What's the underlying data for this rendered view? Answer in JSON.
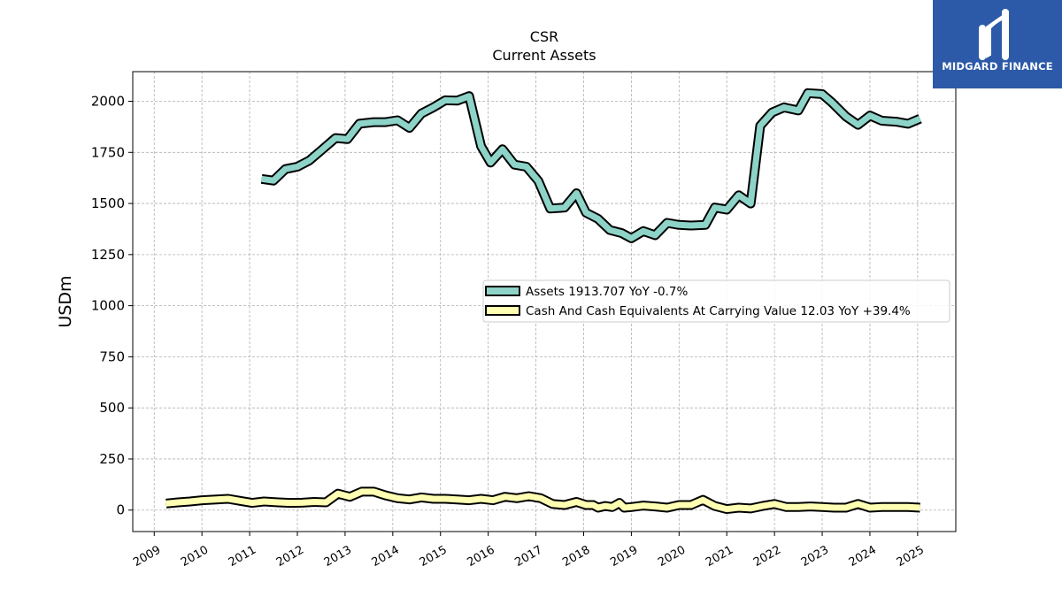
{
  "brand": {
    "name": "MIDGARD FINANCE",
    "bg_color": "#2c5aa8",
    "icon": "midgard-logo-icon"
  },
  "chart_data": {
    "type": "line",
    "title": "CSR",
    "subtitle": "Current  Assets",
    "xlabel": "",
    "ylabel": "USDm",
    "x_ticks": [
      "2009",
      "2010",
      "2011",
      "2012",
      "2013",
      "2014",
      "2015",
      "2016",
      "2017",
      "2018",
      "2019",
      "2020",
      "2021",
      "2022",
      "2023",
      "2024",
      "2025"
    ],
    "y_ticks": [
      0,
      250,
      500,
      750,
      1000,
      1250,
      1500,
      1750,
      2000
    ],
    "xlim": [
      2008.55,
      2025.8
    ],
    "ylim": [
      -105,
      2145
    ],
    "grid": true,
    "legend_position": "center-right",
    "series": [
      {
        "name": "Assets",
        "legend_label": "Assets  1913.707 YoY -0.7%",
        "color": "#8dd3c7",
        "points": [
          [
            2011.25,
            1620
          ],
          [
            2011.5,
            1612
          ],
          [
            2011.75,
            1668
          ],
          [
            2012.0,
            1680
          ],
          [
            2012.25,
            1710
          ],
          [
            2012.5,
            1760
          ],
          [
            2012.8,
            1820
          ],
          [
            2013.05,
            1815
          ],
          [
            2013.3,
            1890
          ],
          [
            2013.6,
            1898
          ],
          [
            2013.85,
            1898
          ],
          [
            2014.1,
            1907
          ],
          [
            2014.35,
            1870
          ],
          [
            2014.6,
            1940
          ],
          [
            2014.85,
            1970
          ],
          [
            2015.1,
            2005
          ],
          [
            2015.35,
            2003
          ],
          [
            2015.6,
            2025
          ],
          [
            2015.85,
            1780
          ],
          [
            2016.05,
            1700
          ],
          [
            2016.3,
            1765
          ],
          [
            2016.55,
            1690
          ],
          [
            2016.8,
            1680
          ],
          [
            2017.05,
            1610
          ],
          [
            2017.3,
            1475
          ],
          [
            2017.6,
            1480
          ],
          [
            2017.85,
            1550
          ],
          [
            2018.05,
            1455
          ],
          [
            2018.3,
            1425
          ],
          [
            2018.55,
            1370
          ],
          [
            2018.8,
            1355
          ],
          [
            2019.0,
            1330
          ],
          [
            2019.25,
            1365
          ],
          [
            2019.5,
            1345
          ],
          [
            2019.75,
            1405
          ],
          [
            2020.0,
            1395
          ],
          [
            2020.25,
            1392
          ],
          [
            2020.55,
            1395
          ],
          [
            2020.75,
            1480
          ],
          [
            2021.0,
            1470
          ],
          [
            2021.25,
            1540
          ],
          [
            2021.5,
            1500
          ],
          [
            2021.7,
            1880
          ],
          [
            2021.95,
            1945
          ],
          [
            2022.2,
            1970
          ],
          [
            2022.5,
            1955
          ],
          [
            2022.7,
            2040
          ],
          [
            2023.0,
            2035
          ],
          [
            2023.2,
            1995
          ],
          [
            2023.5,
            1925
          ],
          [
            2023.75,
            1885
          ],
          [
            2024.0,
            1930
          ],
          [
            2024.25,
            1905
          ],
          [
            2024.55,
            1900
          ],
          [
            2024.8,
            1890
          ],
          [
            2025.05,
            1915
          ]
        ]
      },
      {
        "name": "Cash And Cash Equivalents At Carrying Value",
        "legend_label": "Cash And Cash Equivalents At Carrying Value  12.03 YoY +39.4%",
        "color": "#ffffb3",
        "points": [
          [
            2009.25,
            32
          ],
          [
            2009.5,
            38
          ],
          [
            2009.75,
            42
          ],
          [
            2010.0,
            48
          ],
          [
            2010.3,
            52
          ],
          [
            2010.55,
            55
          ],
          [
            2010.8,
            45
          ],
          [
            2011.05,
            35
          ],
          [
            2011.3,
            42
          ],
          [
            2011.6,
            38
          ],
          [
            2011.85,
            35
          ],
          [
            2012.1,
            36
          ],
          [
            2012.35,
            40
          ],
          [
            2012.6,
            38
          ],
          [
            2012.85,
            80
          ],
          [
            2013.1,
            65
          ],
          [
            2013.35,
            90
          ],
          [
            2013.6,
            90
          ],
          [
            2013.85,
            72
          ],
          [
            2014.1,
            58
          ],
          [
            2014.35,
            52
          ],
          [
            2014.6,
            62
          ],
          [
            2014.85,
            55
          ],
          [
            2015.1,
            55
          ],
          [
            2015.35,
            52
          ],
          [
            2015.6,
            48
          ],
          [
            2015.85,
            55
          ],
          [
            2016.1,
            48
          ],
          [
            2016.35,
            65
          ],
          [
            2016.6,
            58
          ],
          [
            2016.85,
            68
          ],
          [
            2017.1,
            58
          ],
          [
            2017.35,
            30
          ],
          [
            2017.6,
            25
          ],
          [
            2017.85,
            40
          ],
          [
            2018.05,
            25
          ],
          [
            2018.2,
            25
          ],
          [
            2018.3,
            12
          ],
          [
            2018.45,
            20
          ],
          [
            2018.6,
            15
          ],
          [
            2018.75,
            35
          ],
          [
            2018.85,
            12
          ],
          [
            2019.0,
            15
          ],
          [
            2019.25,
            22
          ],
          [
            2019.5,
            18
          ],
          [
            2019.75,
            12
          ],
          [
            2020.0,
            25
          ],
          [
            2020.25,
            25
          ],
          [
            2020.5,
            50
          ],
          [
            2020.75,
            20
          ],
          [
            2021.0,
            5
          ],
          [
            2021.25,
            12
          ],
          [
            2021.5,
            8
          ],
          [
            2021.75,
            20
          ],
          [
            2022.0,
            30
          ],
          [
            2022.25,
            15
          ],
          [
            2022.5,
            15
          ],
          [
            2022.75,
            18
          ],
          [
            2023.0,
            15
          ],
          [
            2023.25,
            12
          ],
          [
            2023.5,
            12
          ],
          [
            2023.75,
            30
          ],
          [
            2024.0,
            12
          ],
          [
            2024.25,
            15
          ],
          [
            2024.55,
            15
          ],
          [
            2024.8,
            15
          ],
          [
            2025.05,
            12
          ]
        ]
      }
    ]
  }
}
